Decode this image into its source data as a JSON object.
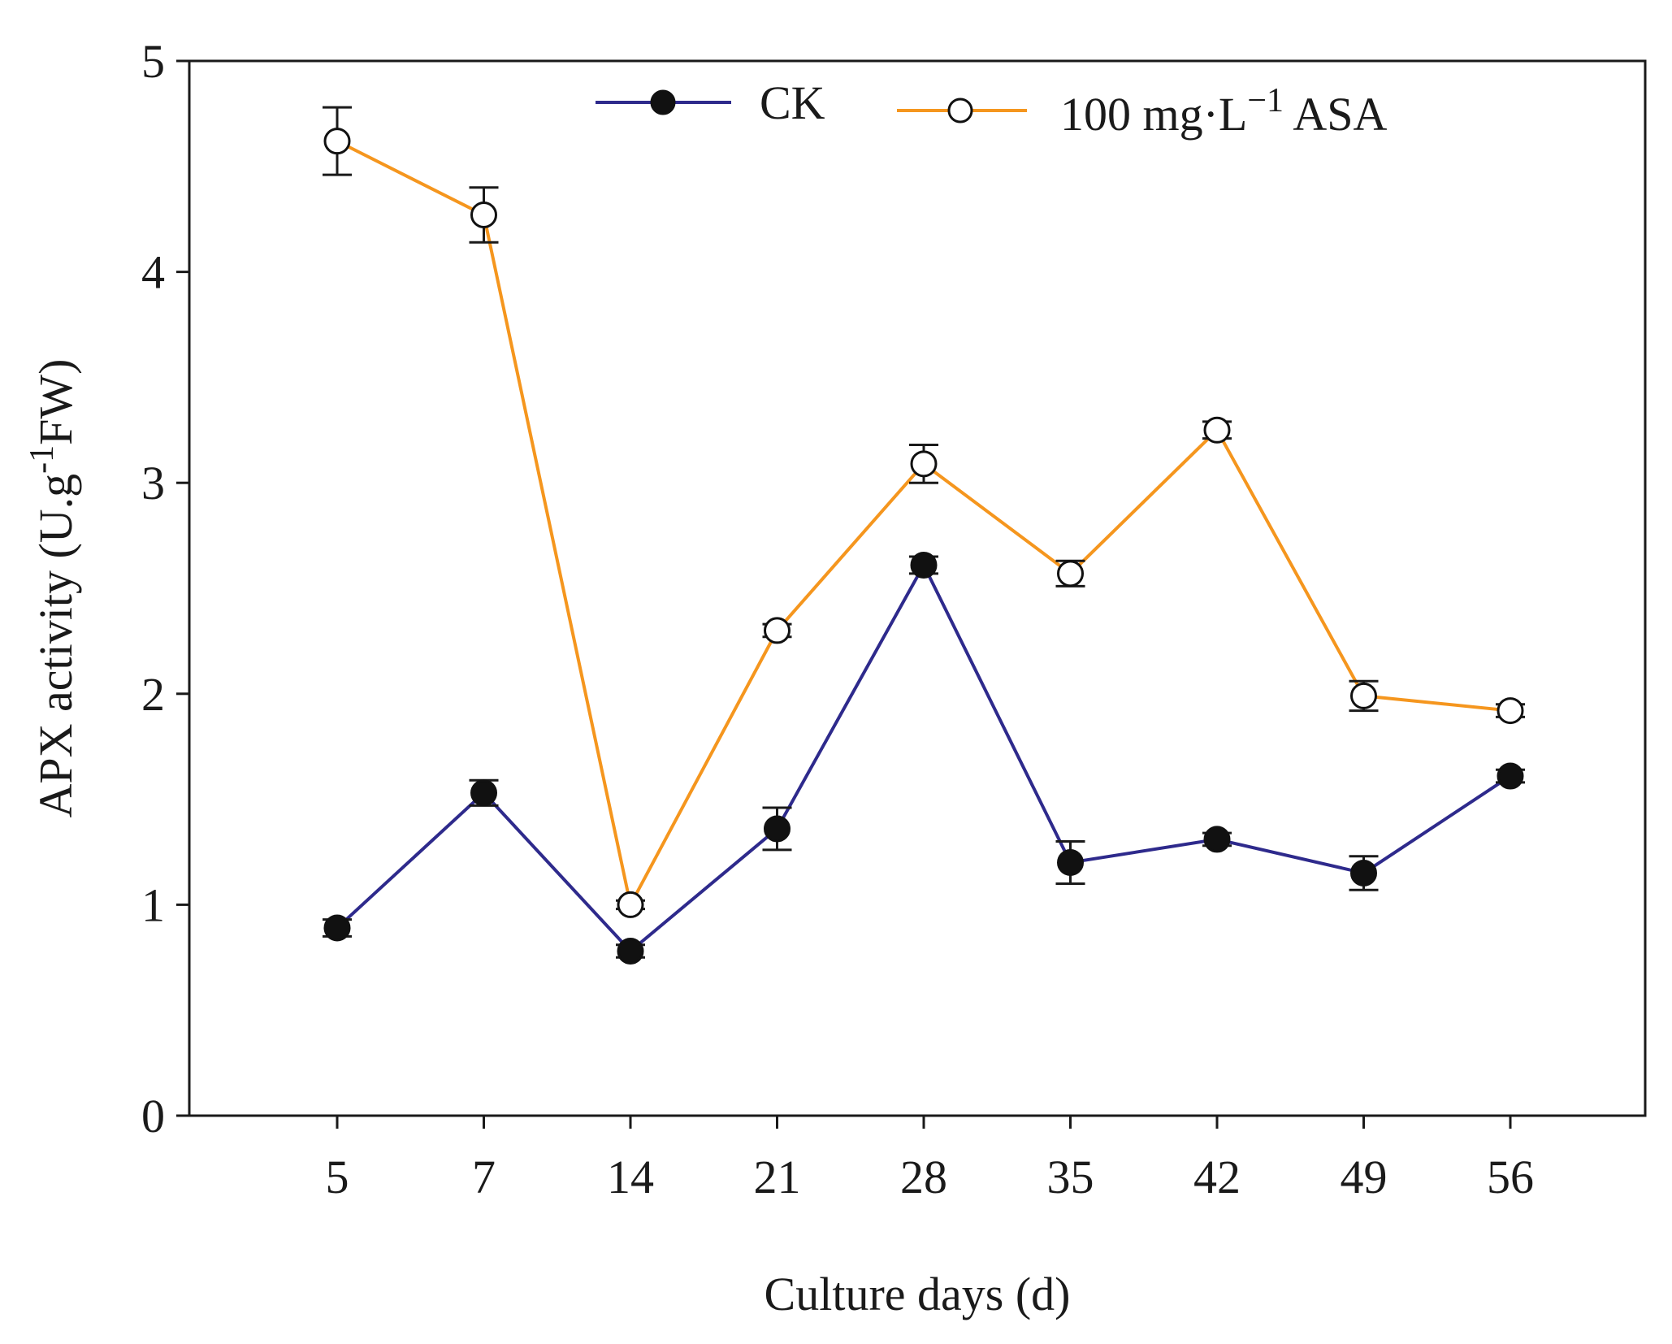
{
  "chart_data": {
    "type": "line",
    "xlabel": "Culture days (d)",
    "ylabel": {
      "prefix": "APX activity (U.g",
      "sup": "-1",
      "suffix": "FW)"
    },
    "categories": [
      "5",
      "7",
      "14",
      "21",
      "28",
      "35",
      "42",
      "49",
      "56"
    ],
    "ylim": [
      0,
      5
    ],
    "yticks": [
      "0",
      "1",
      "2",
      "3",
      "4",
      "5"
    ],
    "grid": false,
    "legend_position": "top",
    "series": [
      {
        "name": "CK",
        "color": "#2e2a8c",
        "marker": "filled-circle",
        "values": [
          0.89,
          1.53,
          0.78,
          1.36,
          2.61,
          1.2,
          1.31,
          1.15,
          1.61
        ],
        "errors": [
          0.04,
          0.06,
          0.03,
          0.1,
          0.04,
          0.1,
          0.03,
          0.08,
          0.03
        ]
      },
      {
        "name": "100 mg·L",
        "name_sup": "−1",
        "name_suffix": " ASA",
        "color": "#f5961e",
        "marker": "open-circle",
        "values": [
          4.62,
          4.27,
          1.0,
          2.3,
          3.09,
          2.57,
          3.25,
          1.99,
          1.92
        ],
        "errors": [
          0.16,
          0.13,
          0.02,
          0.03,
          0.09,
          0.06,
          0.04,
          0.07,
          0.03
        ]
      }
    ]
  }
}
